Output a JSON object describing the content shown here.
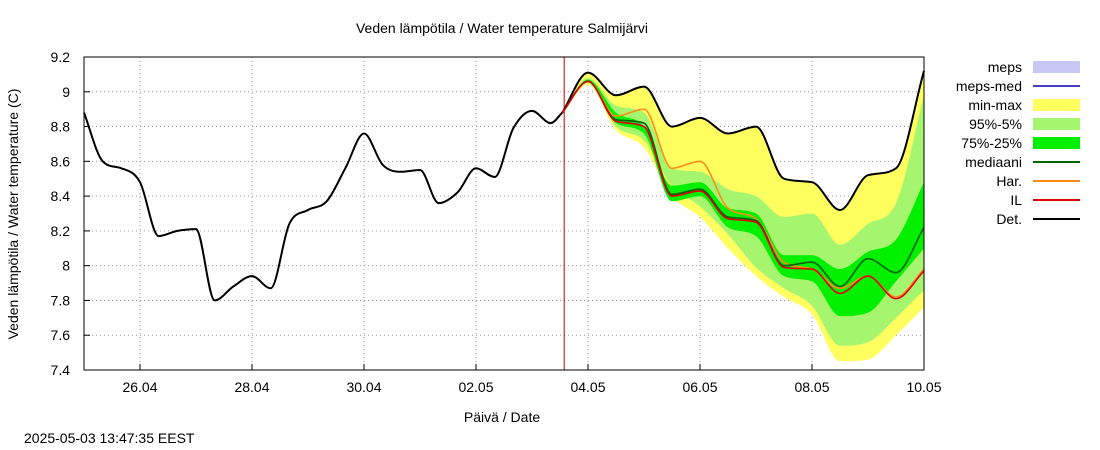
{
  "chart_data": {
    "type": "line",
    "title": "Veden lämpötila / Water temperature Salmijärvi",
    "xlabel": "Päivä / Date",
    "ylabel": "Veden lämpötila / Water temperature (C)",
    "ylim": [
      7.4,
      9.2
    ],
    "yticks": [
      "7.4",
      "7.6",
      "7.8",
      "8",
      "8.2",
      "8.4",
      "8.6",
      "8.8",
      "9",
      "9.2"
    ],
    "xlim": [
      "2025-04-25",
      "2025-05-10"
    ],
    "xticks": [
      {
        "date": "2025-04-26",
        "label": "26.04"
      },
      {
        "date": "2025-04-28",
        "label": "28.04"
      },
      {
        "date": "2025-04-30",
        "label": "30.04"
      },
      {
        "date": "2025-05-02",
        "label": "02.05"
      },
      {
        "date": "2025-05-04",
        "label": "04.05"
      },
      {
        "date": "2025-05-06",
        "label": "06.05"
      },
      {
        "date": "2025-05-08",
        "label": "08.05"
      },
      {
        "date": "2025-05-10",
        "label": "10.05"
      }
    ],
    "grid": true,
    "legend_position": "right",
    "forecast_start": "2025-05-03 13:47",
    "legend": [
      {
        "label": "meps",
        "kind": "band",
        "color": "#c8c8f5"
      },
      {
        "label": "meps-med",
        "kind": "line",
        "color": "#4040c0"
      },
      {
        "label": "min-max",
        "kind": "band",
        "color": "#ffff60"
      },
      {
        "label": "95%-5%",
        "kind": "band",
        "color": "#a6f56e"
      },
      {
        "label": "75%-25%",
        "kind": "band",
        "color": "#00f000"
      },
      {
        "label": "mediaani",
        "kind": "line",
        "color": "#006400"
      },
      {
        "label": "Har.",
        "kind": "line",
        "color": "#ff8c1a"
      },
      {
        "label": "IL",
        "kind": "line",
        "color": "#e00000"
      },
      {
        "label": "Det.",
        "kind": "line",
        "color": "#000000"
      }
    ],
    "observed": {
      "name": "Det.",
      "x": [
        "2025-04-25 00:00",
        "2025-04-25 08:00",
        "2025-04-25 16:00",
        "2025-04-26 00:00",
        "2025-04-26 08:00",
        "2025-04-26 16:00",
        "2025-04-27 00:00",
        "2025-04-27 08:00",
        "2025-04-27 16:00",
        "2025-04-28 00:00",
        "2025-04-28 08:00",
        "2025-04-28 16:00",
        "2025-04-29 00:00",
        "2025-04-29 08:00",
        "2025-04-29 16:00",
        "2025-04-30 00:00",
        "2025-04-30 08:00",
        "2025-04-30 16:00",
        "2025-05-01 00:00",
        "2025-05-01 08:00",
        "2025-05-01 16:00",
        "2025-05-02 00:00",
        "2025-05-02 08:00",
        "2025-05-02 16:00",
        "2025-05-03 00:00",
        "2025-05-03 08:00",
        "2025-05-03 13:00"
      ],
      "y": [
        8.88,
        8.6,
        8.56,
        8.48,
        8.17,
        8.2,
        8.21,
        7.8,
        7.88,
        7.94,
        7.87,
        8.24,
        8.32,
        8.37,
        8.56,
        8.76,
        8.58,
        8.54,
        8.55,
        8.36,
        8.42,
        8.56,
        8.51,
        8.79,
        8.89,
        8.82,
        8.88
      ]
    },
    "forecast_x": [
      "2025-05-03 13:00",
      "2025-05-04 00:00",
      "2025-05-04 12:00",
      "2025-05-05 00:00",
      "2025-05-05 12:00",
      "2025-05-06 00:00",
      "2025-05-06 12:00",
      "2025-05-07 00:00",
      "2025-05-07 12:00",
      "2025-05-08 00:00",
      "2025-05-08 12:00",
      "2025-05-09 00:00",
      "2025-05-09 12:00",
      "2025-05-10 00:00"
    ],
    "bands": [
      {
        "name": "min-max",
        "color": "#ffff60",
        "low": [
          8.88,
          9.04,
          8.78,
          8.68,
          8.4,
          8.28,
          8.1,
          7.94,
          7.82,
          7.72,
          7.45,
          7.46,
          7.6,
          7.76
        ],
        "high": [
          8.88,
          9.11,
          8.98,
          9.03,
          8.8,
          8.85,
          8.76,
          8.8,
          8.5,
          8.48,
          8.32,
          8.52,
          8.56,
          9.12
        ]
      },
      {
        "name": "95%-5%",
        "color": "#a6f56e",
        "low": [
          8.88,
          9.05,
          8.8,
          8.72,
          8.46,
          8.34,
          8.18,
          7.99,
          7.87,
          7.77,
          7.54,
          7.56,
          7.7,
          7.86
        ],
        "high": [
          8.88,
          9.08,
          8.92,
          8.88,
          8.56,
          8.54,
          8.44,
          8.4,
          8.28,
          8.3,
          8.12,
          8.24,
          8.36,
          8.98
        ]
      },
      {
        "name": "75%-25%",
        "color": "#00f000",
        "low": [
          8.88,
          9.06,
          8.82,
          8.76,
          8.37,
          8.4,
          8.22,
          8.17,
          7.94,
          7.91,
          7.71,
          7.73,
          7.91,
          8.1
        ],
        "high": [
          8.88,
          9.07,
          8.88,
          8.8,
          8.46,
          8.48,
          8.33,
          8.3,
          8.06,
          8.06,
          7.98,
          8.08,
          8.15,
          8.48
        ]
      }
    ],
    "series": [
      {
        "name": "Det.",
        "color": "#000000",
        "values": [
          8.88,
          9.11,
          8.98,
          9.03,
          8.8,
          8.85,
          8.76,
          8.8,
          8.5,
          8.48,
          8.32,
          8.52,
          8.56,
          9.12
        ]
      },
      {
        "name": "Har.",
        "color": "#ff8c1a",
        "values": [
          8.88,
          9.06,
          8.86,
          8.9,
          8.56,
          8.6,
          8.33,
          8.27,
          8.02,
          7.98,
          7.87,
          7.94,
          7.82,
          7.98
        ]
      },
      {
        "name": "mediaani",
        "color": "#006400",
        "values": [
          8.88,
          9.06,
          8.84,
          8.82,
          8.41,
          8.44,
          8.28,
          8.26,
          8.0,
          8.02,
          7.88,
          8.04,
          7.96,
          8.22
        ]
      },
      {
        "name": "IL",
        "color": "#e00000",
        "values": [
          8.88,
          9.06,
          8.83,
          8.8,
          8.4,
          8.43,
          8.27,
          8.25,
          7.99,
          7.98,
          7.84,
          7.94,
          7.81,
          7.97
        ]
      }
    ]
  },
  "timestamp": "2025-05-03 13:47:35 EEST"
}
